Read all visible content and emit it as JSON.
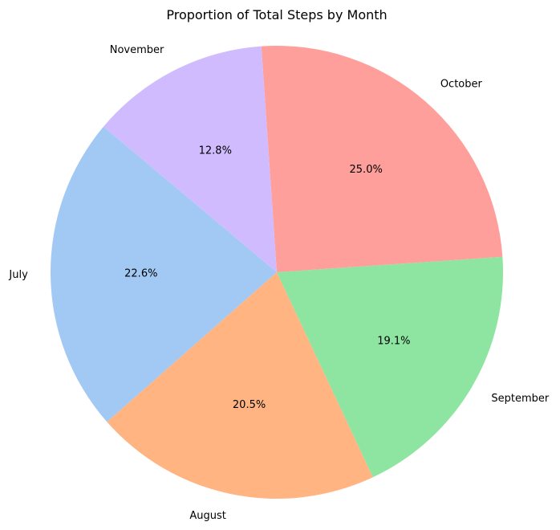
{
  "chart_data": {
    "type": "pie",
    "title": "Proportion of Total Steps by Month",
    "categories": [
      "July",
      "August",
      "September",
      "October",
      "November"
    ],
    "values": [
      22.6,
      20.5,
      19.1,
      25.0,
      12.8
    ],
    "value_labels": [
      "22.6%",
      "20.5%",
      "19.1%",
      "25.0%",
      "12.8%"
    ],
    "colors": [
      "#a1c9f4",
      "#ffb482",
      "#8de5a1",
      "#ff9f9b",
      "#d0bbff"
    ],
    "start_angle_deg": 140,
    "direction": "counterclockwise",
    "legend": "none"
  }
}
